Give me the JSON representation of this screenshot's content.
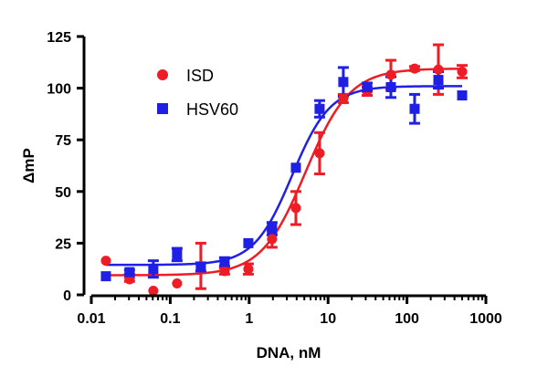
{
  "chart_data": {
    "type": "scatter",
    "xlabel": "DNA, nM",
    "ylabel": "ΔmP",
    "xscale": "log",
    "xlim": [
      0.01,
      1000
    ],
    "ylim": [
      0,
      125
    ],
    "xticks": [
      0.01,
      0.1,
      1,
      10,
      100,
      1000
    ],
    "xtick_labels": [
      "0.01",
      "0.1",
      "1",
      "10",
      "100",
      "1000"
    ],
    "yticks": [
      0,
      25,
      50,
      75,
      100,
      125
    ],
    "ytick_labels": [
      "0",
      "25",
      "50",
      "75",
      "100",
      "125"
    ],
    "grid": false,
    "legend_position": "top-left",
    "series": [
      {
        "name": "ISD",
        "color": "#ee1c25",
        "marker": "circle",
        "points": [
          {
            "x": 0.0153,
            "y": 16.5,
            "err": 0
          },
          {
            "x": 0.0305,
            "y": 7.5,
            "err": 1
          },
          {
            "x": 0.061,
            "y": 2,
            "err": 0
          },
          {
            "x": 0.122,
            "y": 5.5,
            "err": 0
          },
          {
            "x": 0.244,
            "y": 14,
            "err": 11
          },
          {
            "x": 0.488,
            "y": 11.5,
            "err": 1.5
          },
          {
            "x": 0.977,
            "y": 12.5,
            "err": 2.5
          },
          {
            "x": 1.95,
            "y": 27,
            "err": 4
          },
          {
            "x": 3.91,
            "y": 42,
            "err": 8
          },
          {
            "x": 7.81,
            "y": 68.5,
            "err": 10
          },
          {
            "x": 15.6,
            "y": 95,
            "err": 2
          },
          {
            "x": 31.3,
            "y": 98.5,
            "err": 2
          },
          {
            "x": 62.5,
            "y": 106.5,
            "err": 7
          },
          {
            "x": 125,
            "y": 109.5,
            "err": 1
          },
          {
            "x": 250,
            "y": 109,
            "err": 12
          },
          {
            "x": 500,
            "y": 108,
            "err": 3
          }
        ],
        "fit": {
          "bottom": 9.5,
          "top": 109.5,
          "ec50": 5.2,
          "hill": 1.55
        }
      },
      {
        "name": "HSV60",
        "color": "#1f1fe6",
        "marker": "square",
        "points": [
          {
            "x": 0.0153,
            "y": 9,
            "err": 0
          },
          {
            "x": 0.0305,
            "y": 11,
            "err": 1
          },
          {
            "x": 0.061,
            "y": 12.5,
            "err": 4
          },
          {
            "x": 0.122,
            "y": 19.5,
            "err": 3
          },
          {
            "x": 0.244,
            "y": 13.5,
            "err": 2
          },
          {
            "x": 0.488,
            "y": 16,
            "err": 2
          },
          {
            "x": 0.977,
            "y": 25,
            "err": 0
          },
          {
            "x": 1.95,
            "y": 32,
            "err": 3
          },
          {
            "x": 3.91,
            "y": 61.5,
            "err": 0
          },
          {
            "x": 7.81,
            "y": 90,
            "err": 4
          },
          {
            "x": 15.6,
            "y": 103,
            "err": 7
          },
          {
            "x": 31.3,
            "y": 100.5,
            "err": 2
          },
          {
            "x": 62.5,
            "y": 100.5,
            "err": 5
          },
          {
            "x": 125,
            "y": 90,
            "err": 7
          },
          {
            "x": 250,
            "y": 104,
            "err": 4
          },
          {
            "x": 500,
            "y": 96.5,
            "err": 0
          }
        ],
        "fit": {
          "bottom": 14.5,
          "top": 101,
          "ec50": 3.5,
          "hill": 1.8
        }
      }
    ]
  }
}
